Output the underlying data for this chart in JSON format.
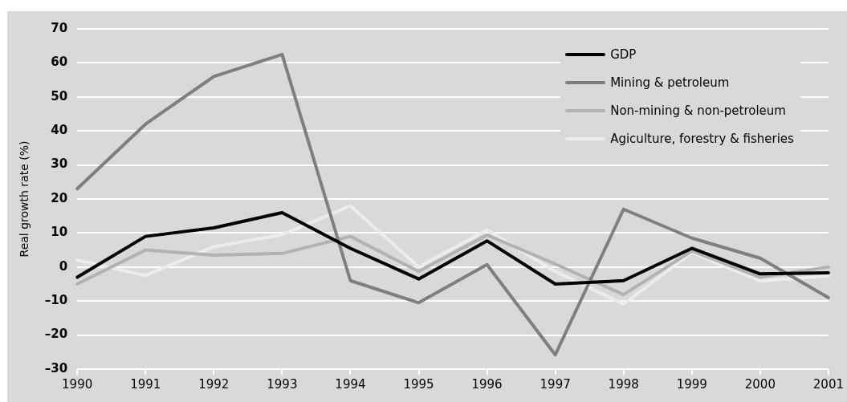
{
  "chart_data": {
    "type": "line",
    "ylabel": "Real growth rate (%)",
    "categories": [
      "1990",
      "1991",
      "1992",
      "1993",
      "1994",
      "1995",
      "1996",
      "1997",
      "1998",
      "1999",
      "2000",
      "2001"
    ],
    "series": [
      {
        "name": "GDP",
        "color": "#000000",
        "values": [
          -3,
          9,
          11.5,
          16,
          5.5,
          -3.5,
          7.7,
          -5,
          -4,
          5.5,
          -2,
          -1.7
        ]
      },
      {
        "name": "Mining & petroleum",
        "color": "#7f7f7f",
        "values": [
          23,
          42,
          56,
          62.5,
          -4,
          -10.5,
          0.7,
          -25.8,
          17,
          8.5,
          2.6,
          -9
        ]
      },
      {
        "name": "Non-mining & non-petroleum",
        "color": "#b2b2b2",
        "values": [
          -5,
          5,
          3.5,
          4,
          9,
          -1.3,
          9.4,
          0.9,
          -8.1,
          4.7,
          -3,
          0
        ]
      },
      {
        "name": "Agiculture, forestry & fisheries",
        "color": "#ececec",
        "values": [
          2,
          -2.5,
          6,
          9.5,
          18,
          0,
          10.9,
          -1.3,
          -10.9,
          4.3,
          -4.1,
          -2.6
        ]
      }
    ],
    "ylim": [
      -30,
      70
    ],
    "yticks": [
      {
        "value": -30,
        "label": "–30"
      },
      {
        "value": -20,
        "label": "–20"
      },
      {
        "value": -10,
        "label": "–10"
      },
      0,
      10,
      20,
      30,
      40,
      50,
      60,
      70
    ],
    "grid": "y",
    "legend": "top right",
    "marker": "none",
    "line_style": "solid"
  }
}
